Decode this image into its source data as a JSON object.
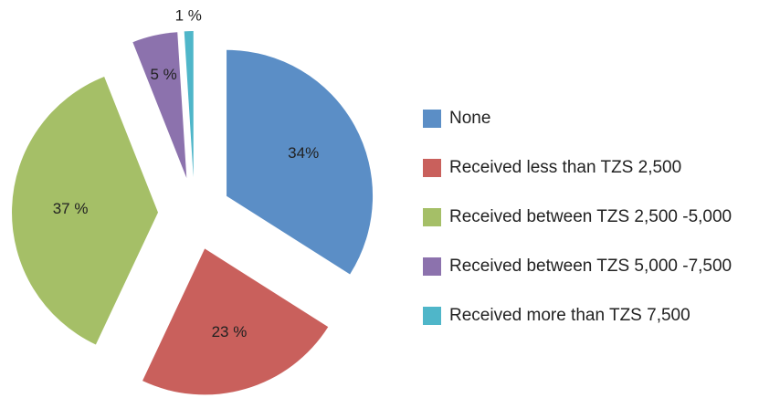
{
  "chart_data": {
    "type": "pie",
    "categories": [
      "None",
      "Received less than TZS 2,500",
      "Received between TZS 2,500 -5,000",
      "Received between TZS 5,000 -7,500",
      "Received more than TZS 7,500"
    ],
    "values": [
      34,
      23,
      37,
      5,
      1
    ],
    "value_labels": [
      "34%",
      "23 %",
      "37 %",
      "5 %",
      "1 %"
    ],
    "colors": [
      "#5b8ec6",
      "#c9605c",
      "#a5bf67",
      "#8c72ad",
      "#4fb6c9"
    ],
    "legend": "right"
  }
}
